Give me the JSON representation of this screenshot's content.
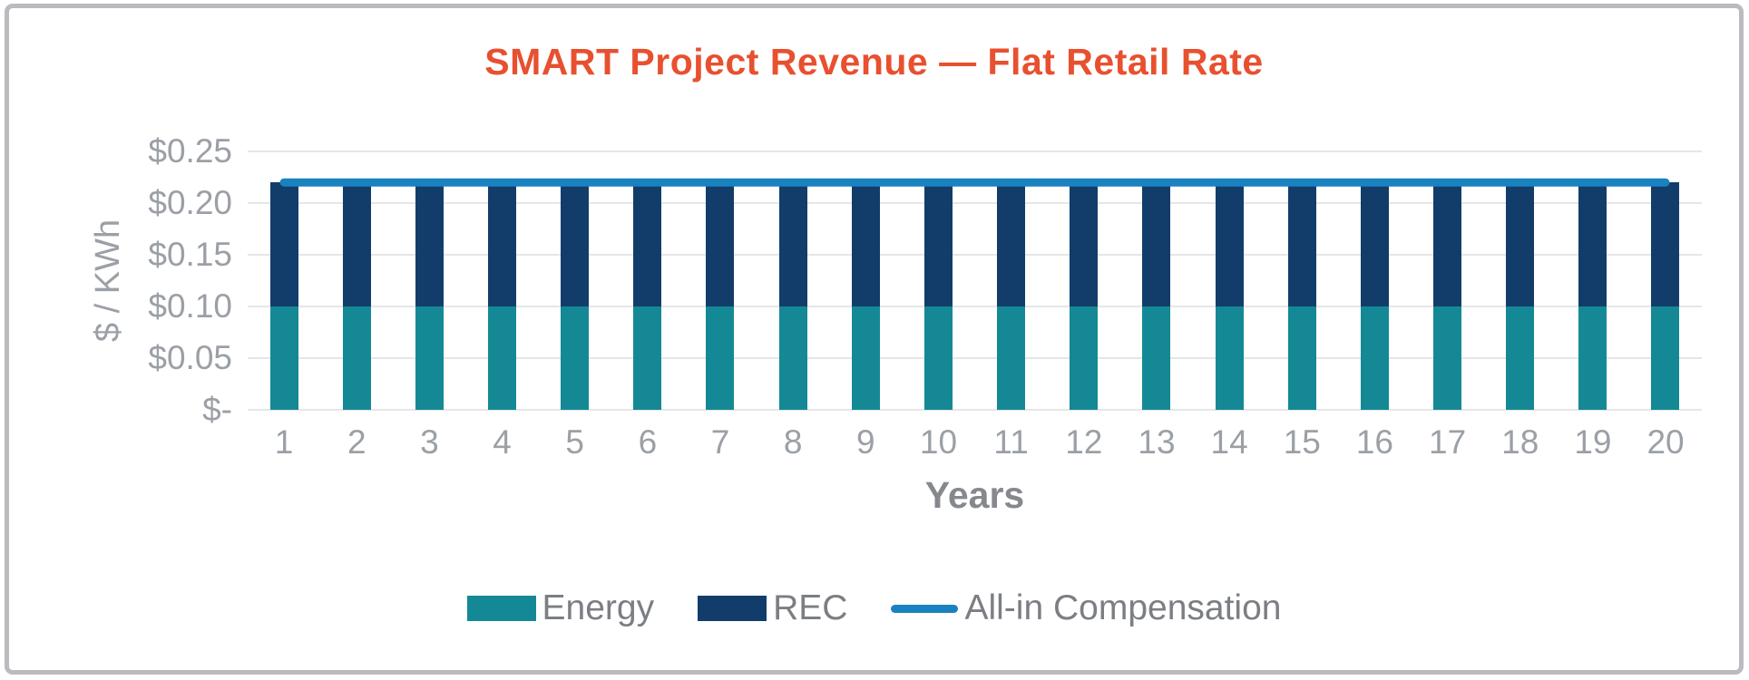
{
  "window": {
    "frame_border_color": "#b9bbbe",
    "background_color": "#ffffff"
  },
  "chart_data": {
    "type": "bar",
    "subtype": "stacked-bar-with-line",
    "title": "SMART Project Revenue — Flat Retail Rate",
    "title_color": "#e8502f",
    "xlabel": "Years",
    "ylabel": "$ / KWh",
    "categories": [
      1,
      2,
      3,
      4,
      5,
      6,
      7,
      8,
      9,
      10,
      11,
      12,
      13,
      14,
      15,
      16,
      17,
      18,
      19,
      20
    ],
    "series": [
      {
        "name": "Energy",
        "type": "bar",
        "color": "#148995",
        "values": [
          0.1,
          0.1,
          0.1,
          0.1,
          0.1,
          0.1,
          0.1,
          0.1,
          0.1,
          0.1,
          0.1,
          0.1,
          0.1,
          0.1,
          0.1,
          0.1,
          0.1,
          0.1,
          0.1,
          0.1
        ]
      },
      {
        "name": "REC",
        "type": "bar",
        "color": "#123d6a",
        "values": [
          0.12,
          0.12,
          0.12,
          0.12,
          0.12,
          0.12,
          0.12,
          0.12,
          0.12,
          0.12,
          0.12,
          0.12,
          0.12,
          0.12,
          0.12,
          0.12,
          0.12,
          0.12,
          0.12,
          0.12
        ]
      },
      {
        "name": "All-in Compensation",
        "type": "line",
        "color": "#1a82c0",
        "values": [
          0.22,
          0.22,
          0.22,
          0.22,
          0.22,
          0.22,
          0.22,
          0.22,
          0.22,
          0.22,
          0.22,
          0.22,
          0.22,
          0.22,
          0.22,
          0.22,
          0.22,
          0.22,
          0.22,
          0.22
        ]
      }
    ],
    "stacked": true,
    "ylim": [
      0,
      0.25
    ],
    "y_ticks": [
      {
        "value": 0.0,
        "label": "$-"
      },
      {
        "value": 0.05,
        "label": "$0.05"
      },
      {
        "value": 0.1,
        "label": "$0.10"
      },
      {
        "value": 0.15,
        "label": "$0.15"
      },
      {
        "value": 0.2,
        "label": "$0.20"
      },
      {
        "value": 0.25,
        "label": "$0.25"
      }
    ],
    "grid": "horizontal",
    "gridline_color": "#e5e6e8",
    "tick_label_color": "#9ba0a6",
    "axis_title_color": "#85888d",
    "legend_position": "bottom",
    "legend_text_color": "#7b7e83"
  }
}
